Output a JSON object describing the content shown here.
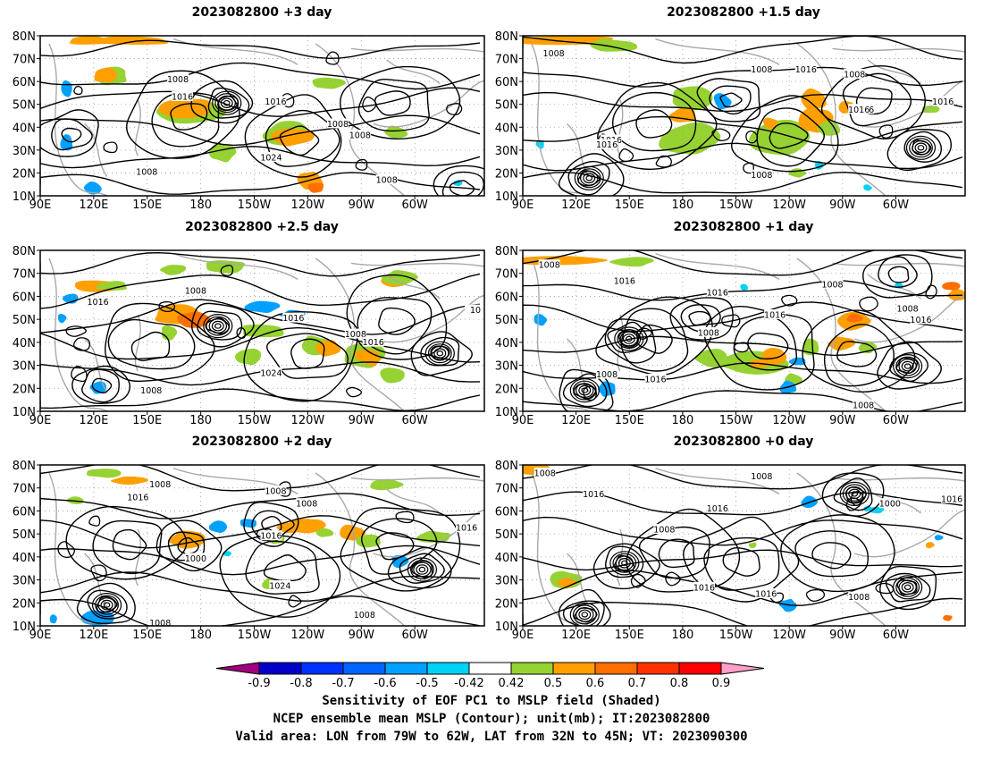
{
  "panels": [
    {
      "title": "2023082800  +3 day",
      "contour_labels": [
        "1008",
        "1016",
        "1016",
        "1008",
        "1008",
        "1024",
        "1008",
        "1008"
      ]
    },
    {
      "title": "2023082800  +1.5 day",
      "contour_labels": [
        "1008",
        "1008",
        "1016",
        "1008",
        "1016",
        "1016",
        "1016",
        "1008",
        "1016",
        "1016"
      ]
    },
    {
      "title": "2023082800  +2.5 day",
      "contour_labels": [
        "1008",
        "1016",
        "1016",
        "1008",
        "1016",
        "1024",
        "1008",
        "10"
      ]
    },
    {
      "title": "2023082800  +1 day",
      "contour_labels": [
        "1008",
        "1016",
        "1016",
        "1008",
        "1008",
        "1016",
        "1008",
        "1008",
        "1016",
        "1016",
        "1008"
      ]
    },
    {
      "title": "2023082800  +2 day",
      "contour_labels": [
        "1008",
        "1016",
        "1008",
        "1008",
        "1016",
        "1000",
        "1024",
        "1008",
        "1016",
        "1008"
      ]
    },
    {
      "title": "2023082800  +0 day",
      "contour_labels": [
        "1008",
        "1008",
        "1016",
        "1016",
        "1008",
        "1016",
        "1016",
        "1000",
        "1016",
        "1008"
      ]
    }
  ],
  "axes": {
    "lat_labels": [
      "80N",
      "70N",
      "60N",
      "50N",
      "40N",
      "30N",
      "20N",
      "10N"
    ],
    "lon_labels": [
      "90E",
      "120E",
      "150E",
      "180",
      "150W",
      "120W",
      "90W",
      "60W"
    ]
  },
  "colorbar": {
    "labels": [
      "-0.9",
      "-0.8",
      "-0.7",
      "-0.6",
      "-0.5",
      "-0.42",
      "0.42",
      "0.5",
      "0.6",
      "0.7",
      "0.8",
      "0.9"
    ],
    "colors": [
      "#a0007f",
      "#0000c8",
      "#0032ff",
      "#0064ff",
      "#00a0ff",
      "#00d2f5",
      "#ffffff",
      "#96d232",
      "#ffa000",
      "#ff6e00",
      "#ff3200",
      "#ff0000",
      "#ffa0c8"
    ]
  },
  "caption": {
    "line1": "Sensitivity of EOF PC1 to MSLP field (Shaded)",
    "line2": "NCEP ensemble mean MSLP (Contour); unit(mb); IT:2023082800",
    "line3": "Valid area: LON from 79W to 62W, LAT from 32N to 45N; VT: 2023090300"
  }
}
